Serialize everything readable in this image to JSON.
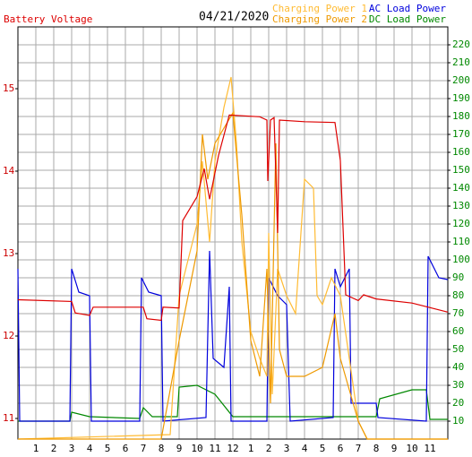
{
  "chart_data": {
    "type": "line",
    "date": "04/21/2020",
    "xlim": [
      0,
      24
    ],
    "xticks": [
      1,
      2,
      3,
      4,
      5,
      6,
      7,
      8,
      9,
      10,
      11,
      12,
      {
        "value": 13,
        "label": "1"
      },
      {
        "value": 14,
        "label": "2"
      },
      {
        "value": 15,
        "label": "3"
      },
      {
        "value": 16,
        "label": "4"
      },
      {
        "value": 17,
        "label": "5"
      },
      {
        "value": 18,
        "label": "6"
      },
      {
        "value": 19,
        "label": "7"
      },
      {
        "value": 20,
        "label": "8"
      },
      {
        "value": 21,
        "label": "9"
      },
      {
        "value": 22,
        "label": "10"
      },
      {
        "value": 23,
        "label": "11"
      }
    ],
    "ylim": [
      10.75,
      15.75
    ],
    "yticks": [
      11,
      12,
      13,
      14,
      15
    ],
    "ycolor": "#cc0000",
    "y2lim": [
      0,
      230
    ],
    "y2ticks": [
      10,
      20,
      30,
      40,
      50,
      60,
      70,
      80,
      90,
      100,
      110,
      120,
      130,
      140,
      150,
      160,
      170,
      180,
      190,
      200,
      210,
      220
    ],
    "y2color": "#008800",
    "grid": true,
    "series": [
      {
        "name": "Battery Voltage",
        "color": "#dd0000",
        "x": [
          0,
          3,
          3.2,
          4,
          4.2,
          7,
          7.2,
          8,
          8.1,
          9,
          9.2,
          10,
          10.4,
          10.7,
          11.2,
          11.8,
          13.5,
          13.9,
          13.95,
          14.1,
          14.3,
          14.5,
          14.6,
          16,
          17.7,
          18,
          18.3,
          19,
          19.3,
          20,
          22,
          24
        ],
        "values": [
          12.44,
          12.42,
          12.28,
          12.25,
          12.35,
          12.35,
          12.21,
          12.19,
          12.35,
          12.34,
          13.4,
          13.69,
          14.03,
          13.66,
          14.19,
          14.68,
          14.66,
          14.62,
          13.88,
          14.62,
          14.65,
          13.25,
          14.62,
          14.6,
          14.59,
          14.13,
          12.5,
          12.43,
          12.5,
          12.45,
          12.4,
          12.29
        ]
      },
      {
        "name": "Charging Power 1",
        "color": "#ffbb33",
        "axis": "y2",
        "x": [
          0,
          8.5,
          9,
          10,
          10.3,
          10.7,
          11,
          11.5,
          11.9,
          12.2,
          12.5,
          13,
          13.5,
          13.9,
          14,
          14.2,
          14.5,
          15,
          15.5,
          16,
          16.5,
          16.7,
          17,
          17.5,
          18,
          18.5,
          19,
          19.5,
          24
        ],
        "values": [
          0,
          2.5,
          80,
          120,
          155,
          110,
          155,
          185,
          202,
          165,
          110,
          60,
          45,
          35,
          115,
          25,
          95,
          80,
          70,
          145,
          140,
          80,
          75,
          90,
          80,
          45,
          10,
          0,
          0
        ]
      },
      {
        "name": "Charging Power 2",
        "color": "#ee9900",
        "axis": "y2",
        "x": [
          0,
          8,
          9,
          10,
          10.3,
          10.6,
          11,
          12,
          12.5,
          13,
          13.5,
          13.9,
          14.1,
          14.4,
          14.6,
          15,
          16,
          17,
          17.7,
          18,
          19,
          19.5,
          24
        ],
        "values": [
          0,
          0,
          55,
          105,
          170,
          145,
          165,
          182,
          125,
          55,
          35,
          95,
          20,
          165,
          50,
          35,
          35,
          40,
          70,
          45,
          10,
          0,
          0
        ]
      },
      {
        "name": "AC Load Power",
        "color": "#0000dd",
        "axis": "y2",
        "x": [
          0,
          0.1,
          2.9,
          3,
          3.4,
          4,
          4.1,
          6.8,
          6.9,
          7.3,
          8,
          8.1,
          10.5,
          10.7,
          10.9,
          11.5,
          11.8,
          11.9,
          13.9,
          14,
          14.5,
          15,
          15.2,
          17.6,
          17.7,
          18,
          18.5,
          18.6,
          20,
          20.1,
          22.8,
          22.9,
          23.5,
          24
        ],
        "values": [
          95,
          10,
          10,
          95,
          82,
          80,
          10,
          10,
          90,
          82,
          80,
          10,
          12,
          105,
          45,
          40,
          85,
          10,
          10,
          90,
          80,
          75,
          10,
          12,
          95,
          85,
          95,
          20,
          20,
          12,
          10,
          102,
          90,
          89
        ]
      },
      {
        "name": "DC Load Power",
        "color": "#008800",
        "axis": "y2",
        "x": [
          0,
          2.9,
          3,
          4,
          6.8,
          7,
          7.5,
          8.9,
          9,
          10,
          11,
          12,
          20,
          20.2,
          22,
          22.8,
          23,
          24
        ],
        "values": [
          10,
          10,
          15,
          12.5,
          11.5,
          17.5,
          12.5,
          12.5,
          29,
          30,
          25,
          12.5,
          12.5,
          22.5,
          27.5,
          27.5,
          11,
          11
        ]
      }
    ]
  }
}
